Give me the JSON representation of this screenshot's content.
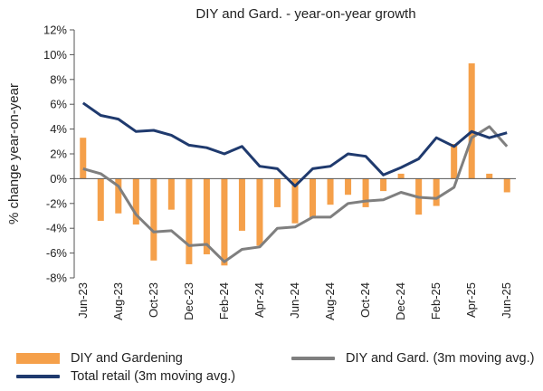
{
  "chart_data": {
    "type": "bar",
    "title": "DIY and Gard. - year-on-year  growth",
    "ylabel": "% change year-on-year",
    "xlabel": "",
    "ylim": [
      -8,
      12
    ],
    "yticks": [
      -8,
      -6,
      -4,
      -2,
      0,
      2,
      4,
      6,
      8,
      10,
      12
    ],
    "ytick_format": "{v}%",
    "categories": [
      "Jun-23",
      "Jul-23",
      "Aug-23",
      "Sep-23",
      "Oct-23",
      "Nov-23",
      "Dec-23",
      "Jan-24",
      "Feb-24",
      "Mar-24",
      "Apr-24",
      "May-24",
      "Jun-24",
      "Jul-24",
      "Aug-24",
      "Sep-24",
      "Oct-24",
      "Nov-24",
      "Dec-24",
      "Jan-25",
      "Feb-25",
      "Mar-25",
      "Apr-25",
      "May-25",
      "Jun-25"
    ],
    "xtick_labels": [
      "Jun-23",
      "",
      "Aug-23",
      "",
      "Oct-23",
      "",
      "Dec-23",
      "",
      "Feb-24",
      "",
      "Apr-24",
      "",
      "Jun-24",
      "",
      "Aug-24",
      "",
      "Oct-24",
      "",
      "Dec-24",
      "",
      "Feb-25",
      "",
      "Apr-25",
      "",
      "Jun-25"
    ],
    "series": [
      {
        "name": "DIY and Gardening",
        "kind": "bar",
        "color": "#F5A04A",
        "values": [
          3.3,
          -3.4,
          -2.8,
          -3.7,
          -6.6,
          -2.5,
          -6.9,
          -6.1,
          -7.0,
          -4.2,
          -5.4,
          -2.3,
          -3.6,
          -3.2,
          -2.1,
          -1.3,
          -2.3,
          -1.0,
          0.4,
          -2.9,
          -2.2,
          2.8,
          9.3,
          0.4,
          -1.1
        ]
      },
      {
        "name": "DIY and Gard. (3m moving avg.)",
        "kind": "line",
        "color": "#7F7F7F",
        "values": [
          0.8,
          0.4,
          -0.6,
          -2.9,
          -4.3,
          -4.2,
          -5.4,
          -5.3,
          -6.7,
          -5.7,
          -5.5,
          -4.0,
          -3.9,
          -3.1,
          -3.1,
          -2.0,
          -1.8,
          -1.7,
          -1.1,
          -1.5,
          -1.6,
          -0.7,
          3.3,
          4.2,
          2.6
        ]
      },
      {
        "name": "Total retail (3m moving avg.)",
        "kind": "line",
        "color": "#1F3A6E",
        "values": [
          6.1,
          5.1,
          4.8,
          3.8,
          3.9,
          3.5,
          2.7,
          2.5,
          2.0,
          2.6,
          1.0,
          0.8,
          -0.6,
          0.8,
          1.0,
          2.0,
          1.8,
          0.3,
          0.9,
          1.6,
          3.3,
          2.6,
          3.8,
          3.3,
          3.7
        ]
      }
    ],
    "grid": false,
    "legend_position": "bottom"
  },
  "legend": {
    "bar_label": "DIY and Gardening",
    "line_gray_label": "DIY and Gard. (3m moving avg.)",
    "line_navy_label": "Total retail (3m moving avg.)"
  }
}
